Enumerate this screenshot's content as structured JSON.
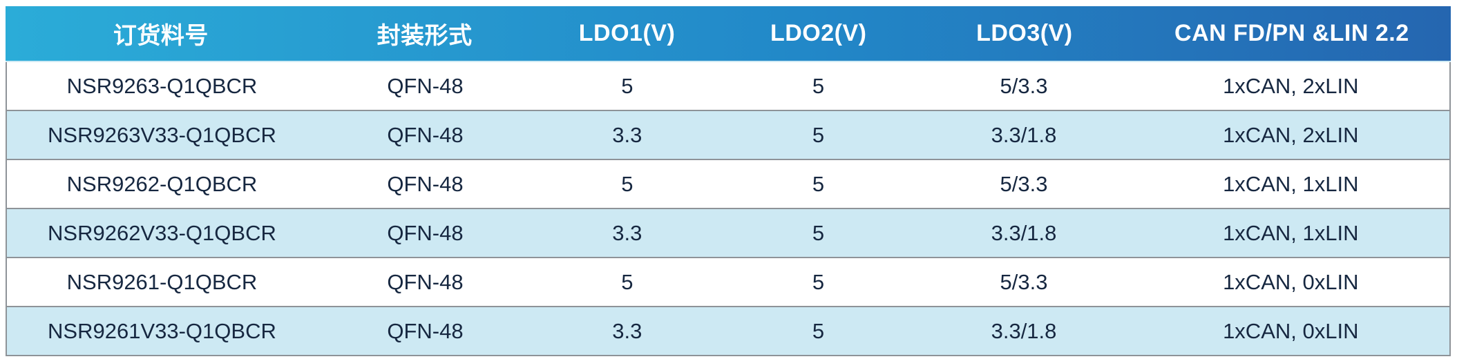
{
  "table": {
    "columns": {
      "part_number": "订货料号",
      "package": "封装形式",
      "ldo1": "LDO1(V)",
      "ldo2": "LDO2(V)",
      "ldo3": "LDO3(V)",
      "can_lin": "CAN FD/PN &LIN 2.2"
    },
    "rows": [
      {
        "part_number": "NSR9263-Q1QBCR",
        "package": "QFN-48",
        "ldo1": "5",
        "ldo2": "5",
        "ldo3": "5/3.3",
        "can_lin": "1xCAN, 2xLIN"
      },
      {
        "part_number": "NSR9263V33-Q1QBCR",
        "package": "QFN-48",
        "ldo1": "3.3",
        "ldo2": "5",
        "ldo3": "3.3/1.8",
        "can_lin": "1xCAN, 2xLIN"
      },
      {
        "part_number": "NSR9262-Q1QBCR",
        "package": "QFN-48",
        "ldo1": "5",
        "ldo2": "5",
        "ldo3": "5/3.3",
        "can_lin": "1xCAN, 1xLIN"
      },
      {
        "part_number": "NSR9262V33-Q1QBCR",
        "package": "QFN-48",
        "ldo1": "3.3",
        "ldo2": "5",
        "ldo3": "3.3/1.8",
        "can_lin": "1xCAN, 1xLIN"
      },
      {
        "part_number": "NSR9261-Q1QBCR",
        "package": "QFN-48",
        "ldo1": "5",
        "ldo2": "5",
        "ldo3": "5/3.3",
        "can_lin": "1xCAN, 0xLIN"
      },
      {
        "part_number": "NSR9261V33-Q1QBCR",
        "package": "QFN-48",
        "ldo1": "3.3",
        "ldo2": "5",
        "ldo3": "3.3/1.8",
        "can_lin": "1xCAN, 0xLIN"
      }
    ],
    "colors": {
      "header_gradient_start": "#2BACD8",
      "header_gradient_end": "#2566B0",
      "header_text": "#FFFFFF",
      "alt_row_background": "#CDE9F3",
      "body_text": "#162740",
      "border": "#8E9398"
    }
  }
}
